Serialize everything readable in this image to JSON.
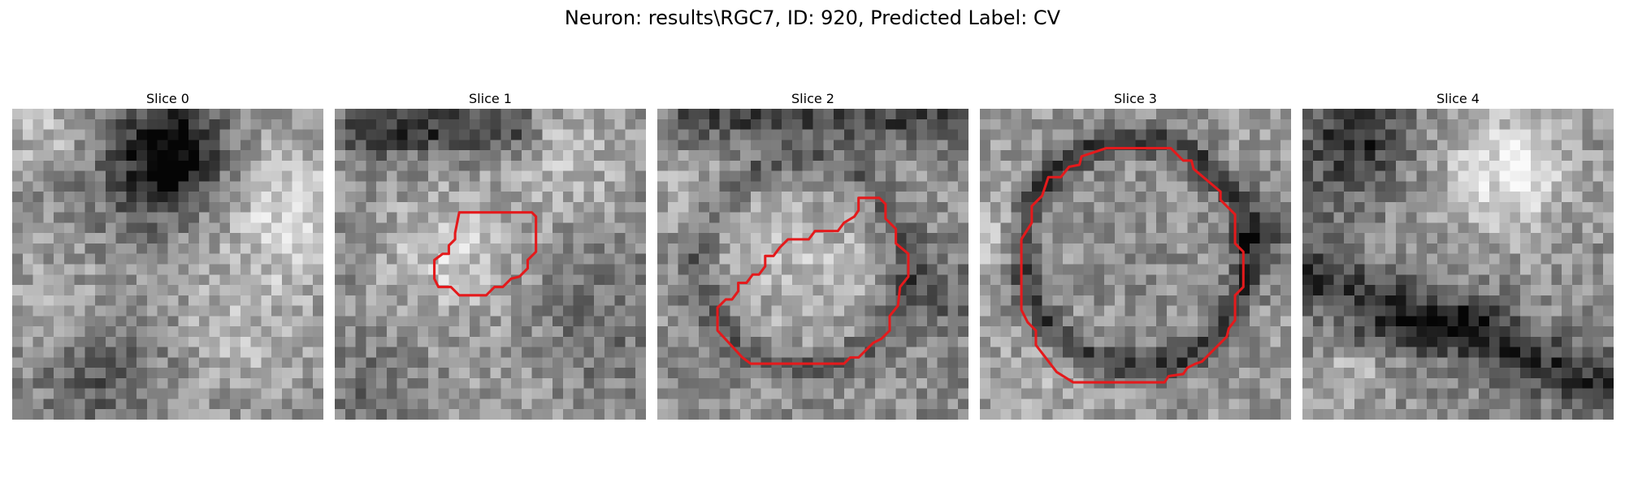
{
  "figure": {
    "title": "Neuron: results\\RGC7, ID: 920, Predicted Label: CV"
  },
  "colors": {
    "contour": "#e41a1c",
    "background": "#ffffff"
  },
  "slices": [
    {
      "title": "Slice 0",
      "has_contour": false
    },
    {
      "title": "Slice 1",
      "has_contour": true
    },
    {
      "title": "Slice 2",
      "has_contour": true
    },
    {
      "title": "Slice 3",
      "has_contour": true
    },
    {
      "title": "Slice 4",
      "has_contour": false
    }
  ]
}
